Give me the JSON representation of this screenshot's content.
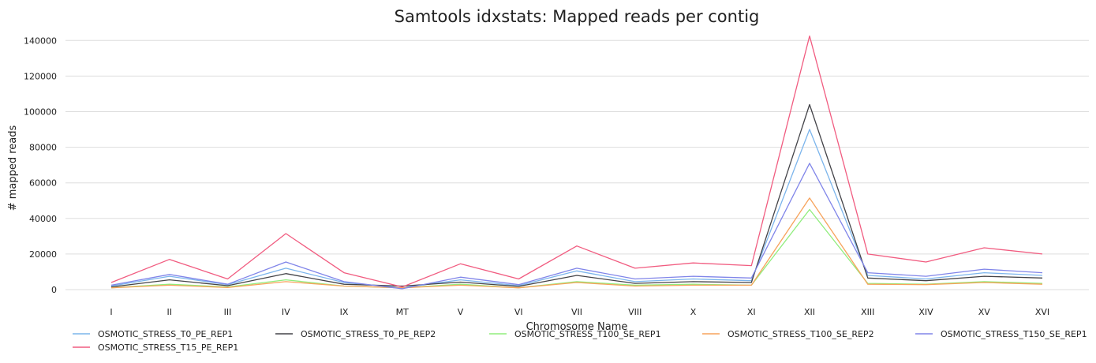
{
  "chart_data": {
    "type": "line",
    "title": "Samtools idxstats: Mapped reads per contig",
    "xlabel": "Chromosome Name",
    "ylabel": "# mapped reads",
    "ylim": [
      0,
      145000
    ],
    "yticks": [
      0,
      20000,
      40000,
      60000,
      80000,
      100000,
      120000,
      140000
    ],
    "grid": true,
    "legend_position": "bottom",
    "categories": [
      "I",
      "II",
      "III",
      "IV",
      "IX",
      "MT",
      "V",
      "VI",
      "VII",
      "VIII",
      "X",
      "XI",
      "XII",
      "XIII",
      "XIV",
      "XV",
      "XVI"
    ],
    "series": [
      {
        "name": "OSMOTIC_STRESS_T0_PE_REP1",
        "color": "#7cb5ec",
        "values": [
          2000,
          7500,
          2800,
          12000,
          4000,
          1000,
          5500,
          2200,
          10500,
          4500,
          6000,
          5000,
          90000,
          8000,
          6000,
          9500,
          8000
        ]
      },
      {
        "name": "OSMOTIC_STRESS_T0_PE_REP2",
        "color": "#434348",
        "values": [
          1500,
          5500,
          2200,
          9000,
          3000,
          2000,
          4200,
          1800,
          8000,
          3500,
          4500,
          4000,
          104000,
          6500,
          5000,
          7500,
          6500
        ]
      },
      {
        "name": "OSMOTIC_STRESS_T100_SE_REP1",
        "color": "#90ed7d",
        "values": [
          1000,
          3000,
          1500,
          5500,
          2000,
          1000,
          3000,
          1000,
          4500,
          2500,
          3000,
          2500,
          45000,
          3500,
          3000,
          4500,
          3500
        ]
      },
      {
        "name": "OSMOTIC_STRESS_T100_SE_REP2",
        "color": "#f7a35c",
        "values": [
          1000,
          2500,
          1200,
          4500,
          2000,
          1000,
          2500,
          1000,
          4000,
          2000,
          2500,
          2500,
          51500,
          3000,
          2800,
          4000,
          3000
        ]
      },
      {
        "name": "OSMOTIC_STRESS_T150_SE_REP1",
        "color": "#8085e9",
        "values": [
          2500,
          8500,
          3000,
          15500,
          4500,
          500,
          7000,
          2800,
          12000,
          6000,
          7500,
          6500,
          71000,
          9500,
          7500,
          11500,
          9500
        ]
      },
      {
        "name": "OSMOTIC_STRESS_T15_PE_REP1",
        "color": "#f15c80",
        "values": [
          4000,
          17000,
          6000,
          31500,
          9500,
          1500,
          14500,
          6000,
          24500,
          12000,
          15000,
          13500,
          142500,
          20000,
          15500,
          23500,
          20000
        ]
      }
    ]
  }
}
